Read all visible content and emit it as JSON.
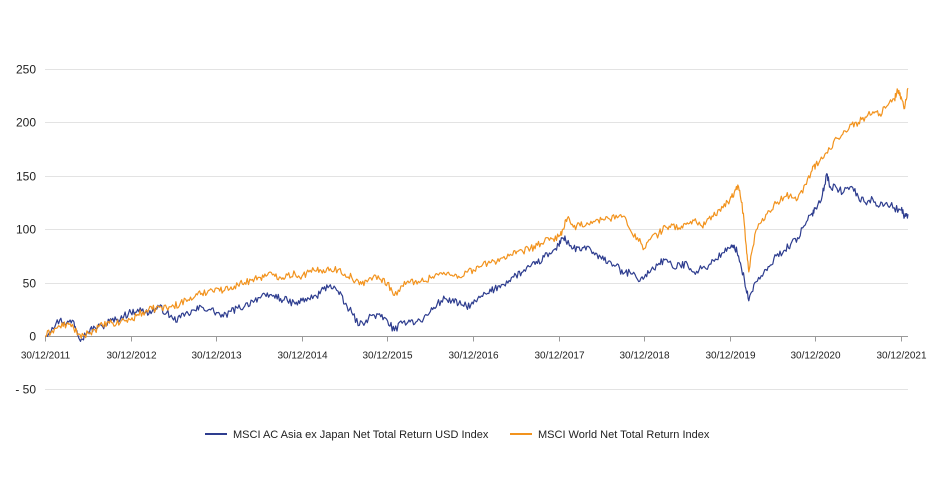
{
  "chart_data": {
    "type": "line",
    "title": "",
    "xlabel": "",
    "ylabel": "",
    "ylim": [
      -60,
      265
    ],
    "yticks": [
      "250",
      "200",
      "150",
      "100",
      "50",
      "0",
      "- 50"
    ],
    "ytick_values": [
      250,
      200,
      150,
      100,
      50,
      0,
      -50
    ],
    "xlim": [
      2011.9973,
      2022.08
    ],
    "xticks": [
      {
        "label": "30/12/2011",
        "t": 2011.9973
      },
      {
        "label": "30/12/2012",
        "t": 2012.9973
      },
      {
        "label": "30/12/2013",
        "t": 2013.9973
      },
      {
        "label": "30/12/2014",
        "t": 2014.9973
      },
      {
        "label": "30/12/2015",
        "t": 2015.9973
      },
      {
        "label": "30/12/2016",
        "t": 2016.9973
      },
      {
        "label": "30/12/2017",
        "t": 2017.9973
      },
      {
        "label": "30/12/2018",
        "t": 2018.9973
      },
      {
        "label": "30/12/2019",
        "t": 2019.9973
      },
      {
        "label": "30/12/2020",
        "t": 2020.9973
      },
      {
        "label": "30/12/2021",
        "t": 2021.9973
      }
    ],
    "grid": "horizontal",
    "legend_position": "bottom",
    "series": [
      {
        "name": "MSCI AC Asia ex Japan Net Total Return USD Index",
        "color": "#2e3d8f",
        "points": [
          [
            2012.0,
            0
          ],
          [
            2012.08,
            8
          ],
          [
            2012.17,
            15
          ],
          [
            2012.25,
            12
          ],
          [
            2012.33,
            14
          ],
          [
            2012.37,
            5
          ],
          [
            2012.42,
            -3
          ],
          [
            2012.5,
            4
          ],
          [
            2012.58,
            8
          ],
          [
            2012.67,
            9
          ],
          [
            2012.75,
            14
          ],
          [
            2012.83,
            15
          ],
          [
            2012.92,
            19
          ],
          [
            2013.0,
            22
          ],
          [
            2013.08,
            25
          ],
          [
            2013.17,
            22
          ],
          [
            2013.25,
            23
          ],
          [
            2013.33,
            27
          ],
          [
            2013.42,
            22
          ],
          [
            2013.5,
            15
          ],
          [
            2013.58,
            17
          ],
          [
            2013.67,
            21
          ],
          [
            2013.75,
            24
          ],
          [
            2013.83,
            27
          ],
          [
            2013.92,
            25
          ],
          [
            2014.0,
            22
          ],
          [
            2014.08,
            18
          ],
          [
            2014.17,
            23
          ],
          [
            2014.25,
            26
          ],
          [
            2014.33,
            28
          ],
          [
            2014.42,
            33
          ],
          [
            2014.5,
            36
          ],
          [
            2014.58,
            37
          ],
          [
            2014.67,
            38
          ],
          [
            2014.75,
            35
          ],
          [
            2014.83,
            33
          ],
          [
            2014.92,
            30
          ],
          [
            2015.0,
            33
          ],
          [
            2015.08,
            35
          ],
          [
            2015.17,
            37
          ],
          [
            2015.25,
            44
          ],
          [
            2015.33,
            48
          ],
          [
            2015.42,
            42
          ],
          [
            2015.5,
            30
          ],
          [
            2015.58,
            22
          ],
          [
            2015.67,
            10
          ],
          [
            2015.75,
            15
          ],
          [
            2015.83,
            20
          ],
          [
            2015.92,
            18
          ],
          [
            2016.0,
            14
          ],
          [
            2016.08,
            5
          ],
          [
            2016.17,
            12
          ],
          [
            2016.25,
            15
          ],
          [
            2016.33,
            13
          ],
          [
            2016.42,
            16
          ],
          [
            2016.5,
            23
          ],
          [
            2016.58,
            30
          ],
          [
            2016.67,
            35
          ],
          [
            2016.75,
            33
          ],
          [
            2016.83,
            30
          ],
          [
            2016.92,
            28
          ],
          [
            2017.0,
            30
          ],
          [
            2017.08,
            36
          ],
          [
            2017.17,
            40
          ],
          [
            2017.25,
            44
          ],
          [
            2017.33,
            48
          ],
          [
            2017.42,
            52
          ],
          [
            2017.5,
            57
          ],
          [
            2017.58,
            60
          ],
          [
            2017.67,
            65
          ],
          [
            2017.75,
            68
          ],
          [
            2017.83,
            74
          ],
          [
            2017.92,
            78
          ],
          [
            2018.0,
            85
          ],
          [
            2018.03,
            92
          ],
          [
            2018.08,
            90
          ],
          [
            2018.17,
            82
          ],
          [
            2018.25,
            80
          ],
          [
            2018.33,
            84
          ],
          [
            2018.42,
            76
          ],
          [
            2018.5,
            72
          ],
          [
            2018.58,
            70
          ],
          [
            2018.67,
            66
          ],
          [
            2018.75,
            58
          ],
          [
            2018.83,
            60
          ],
          [
            2018.92,
            53
          ],
          [
            2019.0,
            55
          ],
          [
            2019.08,
            62
          ],
          [
            2019.17,
            68
          ],
          [
            2019.25,
            72
          ],
          [
            2019.33,
            64
          ],
          [
            2019.42,
            66
          ],
          [
            2019.5,
            68
          ],
          [
            2019.58,
            60
          ],
          [
            2019.67,
            63
          ],
          [
            2019.75,
            66
          ],
          [
            2019.83,
            72
          ],
          [
            2019.92,
            78
          ],
          [
            2020.0,
            82
          ],
          [
            2020.05,
            85
          ],
          [
            2020.1,
            75
          ],
          [
            2020.17,
            52
          ],
          [
            2020.22,
            33
          ],
          [
            2020.29,
            50
          ],
          [
            2020.38,
            56
          ],
          [
            2020.46,
            65
          ],
          [
            2020.54,
            75
          ],
          [
            2020.63,
            80
          ],
          [
            2020.71,
            86
          ],
          [
            2020.79,
            92
          ],
          [
            2020.88,
            104
          ],
          [
            2020.96,
            115
          ],
          [
            2021.0,
            120
          ],
          [
            2021.08,
            132
          ],
          [
            2021.13,
            152
          ],
          [
            2021.17,
            140
          ],
          [
            2021.25,
            138
          ],
          [
            2021.33,
            135
          ],
          [
            2021.42,
            140
          ],
          [
            2021.5,
            130
          ],
          [
            2021.58,
            125
          ],
          [
            2021.67,
            128
          ],
          [
            2021.75,
            122
          ],
          [
            2021.83,
            125
          ],
          [
            2021.92,
            120
          ],
          [
            2022.0,
            118
          ],
          [
            2022.04,
            112
          ],
          [
            2022.08,
            114
          ]
        ]
      },
      {
        "name": "MSCI World Net Total Return Index",
        "color": "#f2931e",
        "points": [
          [
            2012.0,
            0
          ],
          [
            2012.08,
            5
          ],
          [
            2012.17,
            9
          ],
          [
            2012.25,
            11
          ],
          [
            2012.33,
            8
          ],
          [
            2012.42,
            -2
          ],
          [
            2012.5,
            3
          ],
          [
            2012.58,
            6
          ],
          [
            2012.67,
            10
          ],
          [
            2012.75,
            12
          ],
          [
            2012.83,
            11
          ],
          [
            2012.92,
            15
          ],
          [
            2013.0,
            15
          ],
          [
            2013.08,
            20
          ],
          [
            2013.17,
            23
          ],
          [
            2013.25,
            25
          ],
          [
            2013.33,
            27
          ],
          [
            2013.42,
            26
          ],
          [
            2013.5,
            28
          ],
          [
            2013.58,
            31
          ],
          [
            2013.67,
            34
          ],
          [
            2013.75,
            37
          ],
          [
            2013.83,
            40
          ],
          [
            2013.92,
            43
          ],
          [
            2014.0,
            45
          ],
          [
            2014.08,
            42
          ],
          [
            2014.17,
            46
          ],
          [
            2014.25,
            48
          ],
          [
            2014.33,
            50
          ],
          [
            2014.42,
            53
          ],
          [
            2014.5,
            55
          ],
          [
            2014.58,
            56
          ],
          [
            2014.67,
            58
          ],
          [
            2014.75,
            55
          ],
          [
            2014.83,
            57
          ],
          [
            2014.92,
            58
          ],
          [
            2015.0,
            56
          ],
          [
            2015.08,
            60
          ],
          [
            2015.17,
            61
          ],
          [
            2015.25,
            62
          ],
          [
            2015.33,
            63
          ],
          [
            2015.42,
            62
          ],
          [
            2015.5,
            58
          ],
          [
            2015.58,
            55
          ],
          [
            2015.67,
            48
          ],
          [
            2015.75,
            52
          ],
          [
            2015.83,
            55
          ],
          [
            2015.92,
            53
          ],
          [
            2016.0,
            50
          ],
          [
            2016.08,
            38
          ],
          [
            2016.17,
            47
          ],
          [
            2016.25,
            50
          ],
          [
            2016.33,
            52
          ],
          [
            2016.42,
            51
          ],
          [
            2016.5,
            55
          ],
          [
            2016.58,
            58
          ],
          [
            2016.67,
            58
          ],
          [
            2016.75,
            57
          ],
          [
            2016.83,
            56
          ],
          [
            2016.92,
            60
          ],
          [
            2017.0,
            62
          ],
          [
            2017.08,
            65
          ],
          [
            2017.17,
            68
          ],
          [
            2017.25,
            70
          ],
          [
            2017.33,
            73
          ],
          [
            2017.42,
            75
          ],
          [
            2017.5,
            77
          ],
          [
            2017.58,
            79
          ],
          [
            2017.67,
            82
          ],
          [
            2017.75,
            85
          ],
          [
            2017.83,
            88
          ],
          [
            2017.92,
            91
          ],
          [
            2018.0,
            93
          ],
          [
            2018.05,
            100
          ],
          [
            2018.1,
            110
          ],
          [
            2018.17,
            102
          ],
          [
            2018.25,
            103
          ],
          [
            2018.33,
            106
          ],
          [
            2018.42,
            107
          ],
          [
            2018.5,
            109
          ],
          [
            2018.58,
            110
          ],
          [
            2018.67,
            113
          ],
          [
            2018.75,
            112
          ],
          [
            2018.83,
            100
          ],
          [
            2018.92,
            92
          ],
          [
            2019.0,
            82
          ],
          [
            2019.08,
            92
          ],
          [
            2019.17,
            96
          ],
          [
            2019.25,
            102
          ],
          [
            2019.33,
            104
          ],
          [
            2019.42,
            100
          ],
          [
            2019.5,
            106
          ],
          [
            2019.58,
            108
          ],
          [
            2019.67,
            103
          ],
          [
            2019.75,
            110
          ],
          [
            2019.83,
            113
          ],
          [
            2019.92,
            120
          ],
          [
            2020.0,
            128
          ],
          [
            2020.05,
            134
          ],
          [
            2020.1,
            140
          ],
          [
            2020.14,
            125
          ],
          [
            2020.19,
            85
          ],
          [
            2020.22,
            60
          ],
          [
            2020.29,
            95
          ],
          [
            2020.38,
            110
          ],
          [
            2020.46,
            117
          ],
          [
            2020.54,
            124
          ],
          [
            2020.63,
            130
          ],
          [
            2020.71,
            133
          ],
          [
            2020.79,
            128
          ],
          [
            2020.88,
            142
          ],
          [
            2020.96,
            155
          ],
          [
            2021.0,
            160
          ],
          [
            2021.08,
            166
          ],
          [
            2021.17,
            175
          ],
          [
            2021.25,
            185
          ],
          [
            2021.33,
            192
          ],
          [
            2021.42,
            198
          ],
          [
            2021.5,
            200
          ],
          [
            2021.58,
            205
          ],
          [
            2021.67,
            210
          ],
          [
            2021.75,
            208
          ],
          [
            2021.83,
            215
          ],
          [
            2021.92,
            222
          ],
          [
            2021.96,
            230
          ],
          [
            2022.0,
            224
          ],
          [
            2022.04,
            213
          ],
          [
            2022.08,
            232
          ]
        ]
      }
    ]
  }
}
